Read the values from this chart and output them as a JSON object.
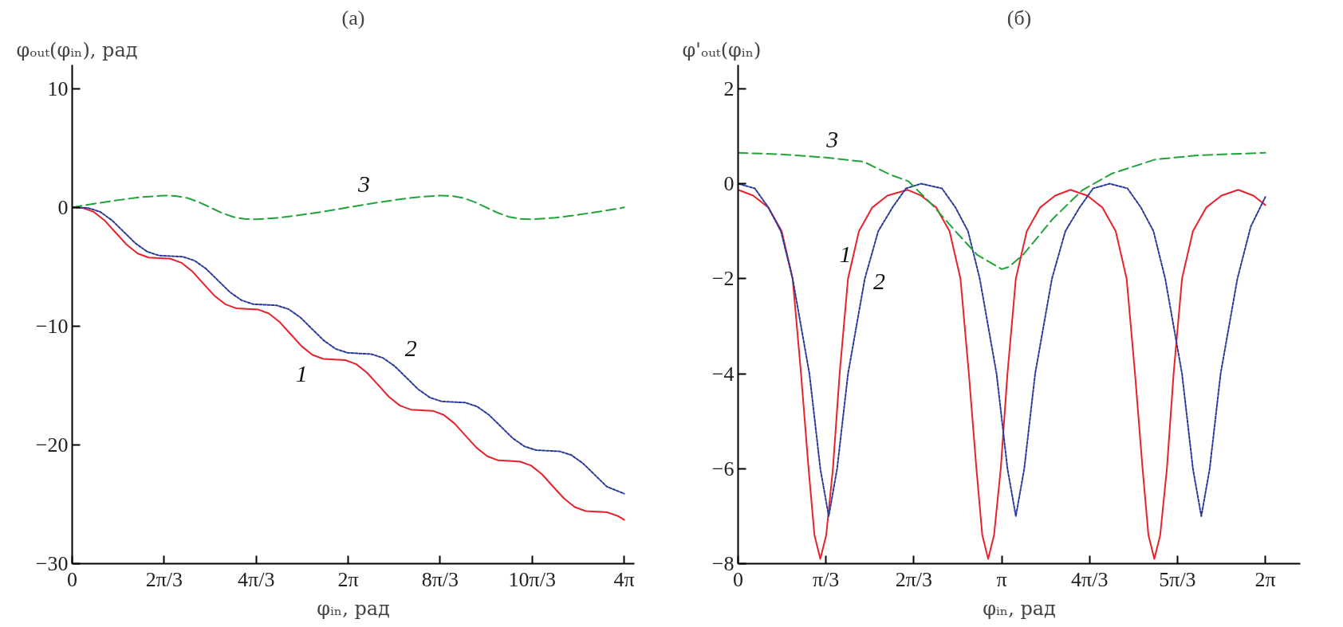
{
  "chart_data": [
    {
      "type": "line",
      "title": "(а)",
      "ylabel": "φₒᵤₜ(φᵢₙ), рад",
      "xlabel": "φᵢₙ, рад",
      "xlim": [
        0,
        12.8
      ],
      "ylim": [
        -30,
        12
      ],
      "xticks": [
        0,
        {
          "value": 2.0944,
          "label": "2π/3"
        },
        {
          "value": 4.1888,
          "label": "4π/3"
        },
        {
          "value": 6.2832,
          "label": "2π"
        },
        {
          "value": 8.3776,
          "label": "8π/3"
        },
        {
          "value": 10.472,
          "label": "10π/3"
        },
        {
          "value": 12.566,
          "label": "4π"
        }
      ],
      "yticks": [
        {
          "value": -30,
          "label": "−30"
        },
        {
          "value": -20,
          "label": "−20"
        },
        {
          "value": -10,
          "label": "−10"
        },
        0,
        10
      ],
      "grid": false,
      "series": [
        {
          "name": "1",
          "color": "#e8212b",
          "line_style": "solid",
          "x": [
            0,
            0.249,
            0.498,
            0.746,
            0.995,
            1.244,
            1.493,
            1.741,
            1.99,
            2.239,
            2.488,
            2.736,
            2.985,
            3.234,
            3.483,
            3.731,
            3.98,
            4.229,
            4.478,
            4.726,
            4.975,
            5.224,
            5.473,
            5.721,
            5.97,
            6.219,
            6.468,
            6.716,
            6.965,
            7.214,
            7.463,
            7.711,
            7.96,
            8.209,
            8.458,
            8.706,
            8.955,
            9.204,
            9.453,
            9.701,
            9.95,
            10.199,
            10.448,
            10.696,
            10.945,
            11.194,
            11.443,
            11.691,
            11.94,
            12.189,
            12.438,
            12.566
          ],
          "values": [
            0,
            -0.05,
            -0.39,
            -1.12,
            -2.14,
            -3.15,
            -3.88,
            -4.22,
            -4.27,
            -4.32,
            -4.66,
            -5.39,
            -6.41,
            -7.42,
            -8.15,
            -8.49,
            -8.54,
            -8.59,
            -8.93,
            -9.66,
            -10.68,
            -11.69,
            -12.42,
            -12.76,
            -12.81,
            -12.86,
            -13.2,
            -13.93,
            -14.95,
            -15.96,
            -16.69,
            -17.03,
            -17.08,
            -17.13,
            -17.47,
            -18.2,
            -19.22,
            -20.23,
            -20.96,
            -21.3,
            -21.35,
            -21.41,
            -21.74,
            -22.47,
            -23.49,
            -24.5,
            -25.24,
            -25.57,
            -25.62,
            -25.68,
            -26.01,
            -26.3
          ]
        },
        {
          "name": "2",
          "color": "#2b3a9a",
          "line_style": "dotted",
          "x": [
            0,
            0.1,
            0.368,
            0.637,
            0.905,
            1.173,
            1.441,
            1.71,
            1.978,
            2.246,
            2.514,
            2.783,
            3.051,
            3.319,
            3.587,
            3.856,
            4.124,
            4.392,
            4.66,
            4.929,
            5.197,
            5.465,
            5.733,
            6.002,
            6.27,
            6.538,
            6.806,
            7.075,
            7.343,
            7.611,
            7.879,
            8.148,
            8.416,
            8.684,
            8.952,
            9.221,
            9.489,
            9.757,
            10.025,
            10.294,
            10.562,
            10.83,
            11.098,
            11.367,
            11.635,
            11.903,
            12.171,
            12.566
          ],
          "values": [
            0,
            0,
            -0.05,
            -0.37,
            -1.08,
            -2.05,
            -3.02,
            -3.73,
            -4.05,
            -4.1,
            -4.15,
            -4.47,
            -5.17,
            -6.15,
            -7.12,
            -7.82,
            -8.15,
            -8.2,
            -8.25,
            -8.57,
            -9.27,
            -10.25,
            -11.22,
            -11.92,
            -12.24,
            -12.3,
            -12.35,
            -12.67,
            -13.37,
            -14.34,
            -15.32,
            -16.02,
            -16.34,
            -16.39,
            -16.44,
            -16.77,
            -17.47,
            -18.44,
            -19.42,
            -20.12,
            -20.44,
            -20.49,
            -20.54,
            -20.86,
            -21.57,
            -22.54,
            -23.51,
            -24.1
          ]
        },
        {
          "name": "3",
          "color": "#21a33a",
          "line_style": "dashed",
          "x": [
            0,
            0.524,
            1.047,
            1.571,
            2.094,
            2.356,
            2.618,
            2.88,
            3.142,
            3.403,
            3.665,
            3.927,
            4.189,
            4.712,
            5.236,
            5.76,
            6.283,
            6.807,
            7.33,
            7.854,
            8.378,
            8.639,
            8.901,
            9.163,
            9.425,
            9.687,
            9.948,
            10.21,
            10.472,
            10.996,
            11.519,
            12.043,
            12.566
          ],
          "values": [
            0,
            0.33,
            0.62,
            0.87,
            1.0,
            0.97,
            0.8,
            0.45,
            0,
            -0.45,
            -0.8,
            -0.97,
            -1.0,
            -0.87,
            -0.62,
            -0.33,
            0,
            0.33,
            0.62,
            0.87,
            1.0,
            0.97,
            0.8,
            0.45,
            0,
            -0.45,
            -0.8,
            -0.97,
            -1.0,
            -0.87,
            -0.62,
            -0.33,
            0
          ]
        }
      ],
      "legend": false
    },
    {
      "type": "line",
      "title": "(б)",
      "ylabel": "φ'ₒᵤₜ(φᵢₙ)",
      "xlabel": "φᵢₙ, рад",
      "xlim": [
        0,
        6.7
      ],
      "ylim": [
        -8,
        2.5
      ],
      "xticks": [
        0,
        {
          "value": 1.0472,
          "label": "π/3"
        },
        {
          "value": 2.0944,
          "label": "2π/3"
        },
        {
          "value": 3.1416,
          "label": "π"
        },
        {
          "value": 4.1888,
          "label": "4π/3"
        },
        {
          "value": 5.236,
          "label": "5π/3"
        },
        {
          "value": 6.2832,
          "label": "2π"
        }
      ],
      "yticks": [
        {
          "value": -8,
          "label": "−8"
        },
        {
          "value": -6,
          "label": "−6"
        },
        {
          "value": -4,
          "label": "−4"
        },
        {
          "value": -2,
          "label": "−2"
        },
        0,
        2
      ],
      "grid": false,
      "series": [
        {
          "name": "1",
          "color": "#e8212b",
          "line_style": "solid",
          "x": [
            0,
            0.18,
            0.36,
            0.52,
            0.65,
            0.75,
            0.84,
            0.91,
            0.98,
            1.05,
            1.13,
            1.21,
            1.31,
            1.44,
            1.6,
            1.78,
            2.02,
            2.18,
            2.36,
            2.52,
            2.65,
            2.75,
            2.84,
            2.91,
            2.98,
            3.05,
            3.13,
            3.21,
            3.31,
            3.44,
            3.6,
            3.78,
            3.96,
            4.16,
            4.34,
            4.5,
            4.63,
            4.73,
            4.82,
            4.89,
            4.96,
            5.03,
            5.11,
            5.19,
            5.29,
            5.42,
            5.58,
            5.76,
            5.96,
            6.14,
            6.283
          ],
          "values": [
            -0.13,
            -0.25,
            -0.5,
            -1,
            -2,
            -4,
            -6,
            -7.4,
            -7.9,
            -7.4,
            -6,
            -4,
            -2,
            -1,
            -0.5,
            -0.25,
            -0.13,
            -0.25,
            -0.5,
            -1,
            -2,
            -4,
            -6,
            -7.4,
            -7.9,
            -7.4,
            -6,
            -4,
            -2,
            -1,
            -0.5,
            -0.25,
            -0.13,
            -0.25,
            -0.5,
            -1,
            -2,
            -4,
            -6,
            -7.4,
            -7.9,
            -7.4,
            -6,
            -4,
            -2,
            -1,
            -0.5,
            -0.25,
            -0.13,
            -0.25,
            -0.45
          ]
        },
        {
          "name": "2",
          "color": "#2b3a9a",
          "line_style": "dotted",
          "x": [
            0,
            0.2,
            0.36,
            0.51,
            0.65,
            0.85,
            0.98,
            1.08,
            1.18,
            1.31,
            1.51,
            1.67,
            1.84,
            2.0,
            2.18,
            2.43,
            2.59,
            2.74,
            2.88,
            3.08,
            3.21,
            3.31,
            3.41,
            3.54,
            3.74,
            3.9,
            4.07,
            4.23,
            4.43,
            4.64,
            4.8,
            4.95,
            5.09,
            5.29,
            5.42,
            5.52,
            5.62,
            5.75,
            5.95,
            6.11,
            6.283
          ],
          "values": [
            0,
            -0.1,
            -0.5,
            -1,
            -2,
            -4,
            -6,
            -7,
            -6,
            -4,
            -2,
            -1,
            -0.5,
            -0.1,
            0,
            -0.1,
            -0.5,
            -1,
            -2,
            -4,
            -6,
            -7,
            -6,
            -4,
            -2,
            -1,
            -0.5,
            -0.1,
            0,
            -0.1,
            -0.5,
            -1,
            -2,
            -4,
            -6,
            -7,
            -6,
            -4,
            -2,
            -0.9,
            -0.28
          ]
        },
        {
          "name": "3",
          "color": "#21a33a",
          "line_style": "dashed",
          "x": [
            0,
            0.5,
            1.047,
            1.3,
            1.5,
            1.8,
            2.03,
            2.3,
            2.6,
            2.85,
            3.142,
            3.23,
            3.41,
            3.75,
            4.1,
            4.45,
            4.97,
            5.5,
            6.283
          ],
          "values": [
            0.65,
            0.62,
            0.55,
            0.5,
            0.46,
            0.2,
            0.05,
            -0.42,
            -1.02,
            -1.5,
            -1.8,
            -1.75,
            -1.47,
            -0.74,
            -0.14,
            0.21,
            0.51,
            0.6,
            0.65
          ]
        }
      ],
      "legend": false
    }
  ]
}
